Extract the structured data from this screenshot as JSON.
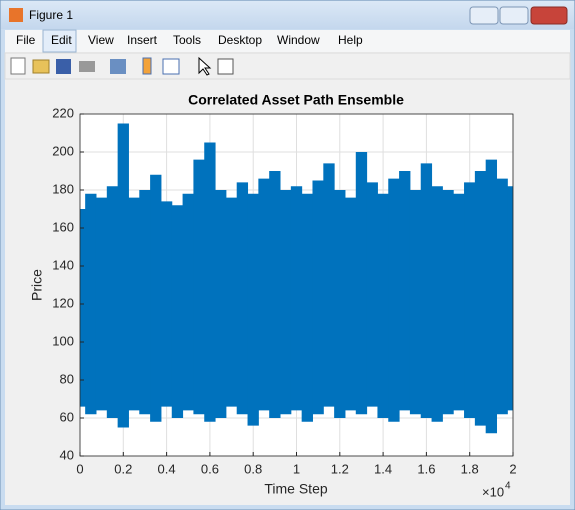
{
  "window_title": "Figure 1",
  "menu": [
    "File",
    "Edit",
    "View",
    "Insert",
    "Tools",
    "Desktop",
    "Window",
    "Help"
  ],
  "chart_data": {
    "type": "range",
    "title": "Correlated Asset Path Ensemble",
    "xlabel": "Time Step",
    "ylabel": "Price",
    "x_multiplier": "×10",
    "x_exponent": "4",
    "color": "#0072bd",
    "grid": true,
    "xlim": [
      0,
      20000
    ],
    "ylim": [
      40,
      220
    ],
    "xticks": [
      0,
      {
        "value": 2000,
        "label": "0.2"
      },
      {
        "value": 4000,
        "label": "0.4"
      },
      {
        "value": 6000,
        "label": "0.6"
      },
      {
        "value": 8000,
        "label": "0.8"
      },
      {
        "value": 10000,
        "label": "1"
      },
      {
        "value": 12000,
        "label": "1.2"
      },
      {
        "value": 14000,
        "label": "1.4"
      },
      {
        "value": 16000,
        "label": "1.6"
      },
      {
        "value": 18000,
        "label": "1.8"
      },
      {
        "value": 20000,
        "label": "2"
      }
    ],
    "yticks": [
      40,
      60,
      80,
      100,
      120,
      140,
      160,
      180,
      200,
      220
    ],
    "x": [
      0,
      500,
      1000,
      1500,
      2000,
      2500,
      3000,
      3500,
      4000,
      4500,
      5000,
      5500,
      6000,
      6500,
      7000,
      7500,
      8000,
      8500,
      9000,
      9500,
      10000,
      10500,
      11000,
      11500,
      12000,
      12500,
      13000,
      13500,
      14000,
      14500,
      15000,
      15500,
      16000,
      16500,
      17000,
      17500,
      18000,
      18500,
      19000,
      19500,
      20000
    ],
    "high": [
      170,
      178,
      176,
      182,
      215,
      176,
      180,
      188,
      174,
      172,
      178,
      196,
      205,
      180,
      176,
      184,
      178,
      186,
      190,
      180,
      182,
      178,
      185,
      194,
      180,
      176,
      200,
      184,
      178,
      186,
      190,
      180,
      194,
      182,
      180,
      178,
      184,
      190,
      196,
      186,
      182
    ],
    "low": [
      66,
      62,
      64,
      60,
      55,
      64,
      62,
      58,
      66,
      60,
      64,
      62,
      58,
      60,
      66,
      62,
      56,
      64,
      60,
      62,
      64,
      58,
      62,
      66,
      60,
      64,
      62,
      66,
      60,
      58,
      64,
      62,
      60,
      58,
      62,
      64,
      60,
      56,
      52,
      62,
      64
    ]
  }
}
